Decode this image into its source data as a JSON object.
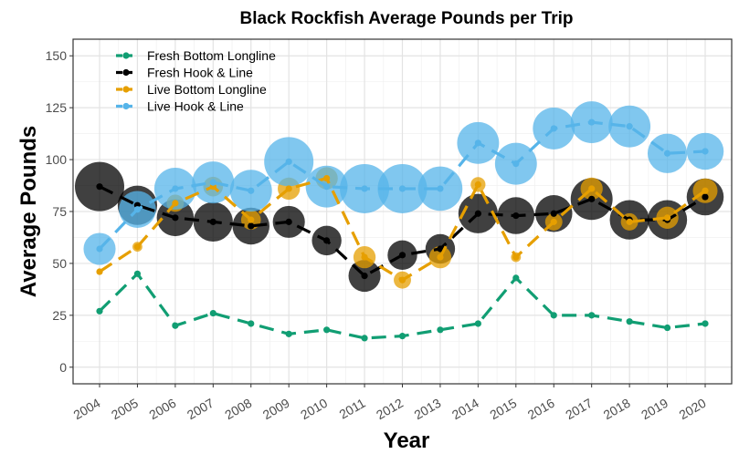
{
  "chart_data": {
    "type": "line",
    "title": "Black Rockfish Average Pounds per Trip",
    "xlabel": "Year",
    "ylabel": "Average Pounds",
    "ylim": [
      -8,
      158
    ],
    "yticks": [
      0,
      25,
      50,
      75,
      100,
      125,
      150
    ],
    "x": [
      2004,
      2005,
      2006,
      2007,
      2008,
      2009,
      2010,
      2011,
      2012,
      2013,
      2014,
      2015,
      2016,
      2017,
      2018,
      2019,
      2020
    ],
    "grid": true,
    "legend_position": "top-left",
    "series": [
      {
        "name": "Fresh Bottom Longline",
        "color": "#119e73",
        "values": [
          27,
          45,
          20,
          26,
          21,
          16,
          18,
          14,
          15,
          18,
          21,
          43,
          25,
          25,
          22,
          19,
          21
        ],
        "relative_marker_size": [
          0,
          0,
          0,
          0,
          0,
          0,
          0,
          0,
          0,
          0,
          0,
          0,
          0,
          0,
          0,
          0,
          0
        ]
      },
      {
        "name": "Fresh Hook & Line",
        "color": "#000000",
        "values": [
          87,
          78,
          72,
          70,
          68,
          70,
          61,
          44,
          54,
          57,
          74,
          73,
          74,
          81,
          71,
          71,
          82
        ],
        "relative_marker_size": [
          1.0,
          0.8,
          0.75,
          0.8,
          0.75,
          0.65,
          0.6,
          0.65,
          0.6,
          0.6,
          0.8,
          0.75,
          0.75,
          0.85,
          0.8,
          0.8,
          0.75
        ]
      },
      {
        "name": "Live Bottom Longline",
        "color": "#e69f00",
        "values": [
          46,
          58,
          79,
          87,
          71,
          86,
          91,
          53,
          42,
          53,
          88,
          53,
          70,
          86,
          70,
          72,
          85
        ],
        "relative_marker_size": [
          0,
          0.2,
          0.35,
          0.4,
          0.4,
          0.45,
          0.45,
          0.45,
          0.35,
          0.45,
          0.3,
          0.2,
          0.35,
          0.45,
          0.35,
          0.45,
          0.5
        ]
      },
      {
        "name": "Live Hook & Line",
        "color": "#56b4e9",
        "values": [
          57,
          76,
          86,
          89,
          85,
          99,
          87,
          86,
          86,
          86,
          108,
          98,
          115,
          118,
          116,
          103,
          104
        ],
        "relative_marker_size": [
          0.65,
          0.75,
          0.85,
          0.85,
          0.85,
          1.0,
          0.85,
          1.0,
          1.0,
          0.9,
          0.85,
          0.85,
          0.85,
          0.85,
          0.85,
          0.8,
          0.75
        ]
      }
    ]
  }
}
